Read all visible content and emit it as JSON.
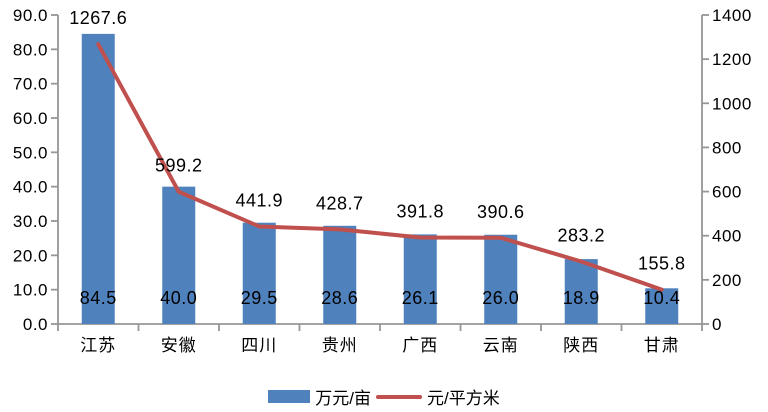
{
  "chart_data": {
    "type": "combo",
    "title": "",
    "xlabel": "",
    "ylabel_left": "",
    "ylabel_right": "",
    "grid": false,
    "legend_position": "bottom",
    "background": "#FFFFFF",
    "axis_color": "#969696",
    "text_color": "#000000",
    "categories": [
      "江苏",
      "安徽",
      "四川",
      "贵州",
      "广西",
      "云南",
      "陕西",
      "甘肃"
    ],
    "series": [
      {
        "name": "万元/亩",
        "type": "bar",
        "axis": "left",
        "color": "#4F81BD",
        "values": [
          84.5,
          40.0,
          29.5,
          28.6,
          26.1,
          26.0,
          18.9,
          10.4
        ],
        "labels": [
          "84.5",
          "40.0",
          "29.5",
          "28.6",
          "26.1",
          "26.0",
          "18.9",
          "10.4"
        ]
      },
      {
        "name": "元/平方米",
        "type": "line",
        "axis": "right",
        "color": "#C0504D",
        "values": [
          1267.6,
          599.2,
          441.9,
          428.7,
          391.8,
          390.6,
          283.2,
          155.8
        ],
        "labels": [
          "1267.6",
          "599.2",
          "441.9",
          "428.7",
          "391.8",
          "390.6",
          "283.2",
          "155.8"
        ]
      }
    ],
    "left_axis": {
      "min": 0,
      "max": 90,
      "tick_step": 10,
      "tick_labels": [
        "0.0",
        "10.0",
        "20.0",
        "30.0",
        "40.0",
        "50.0",
        "60.0",
        "70.0",
        "80.0",
        "90.0"
      ]
    },
    "right_axis": {
      "min": 0,
      "max": 1400,
      "tick_step": 200,
      "tick_labels": [
        "0",
        "200",
        "400",
        "600",
        "800",
        "1000",
        "1200",
        "1400"
      ]
    }
  }
}
